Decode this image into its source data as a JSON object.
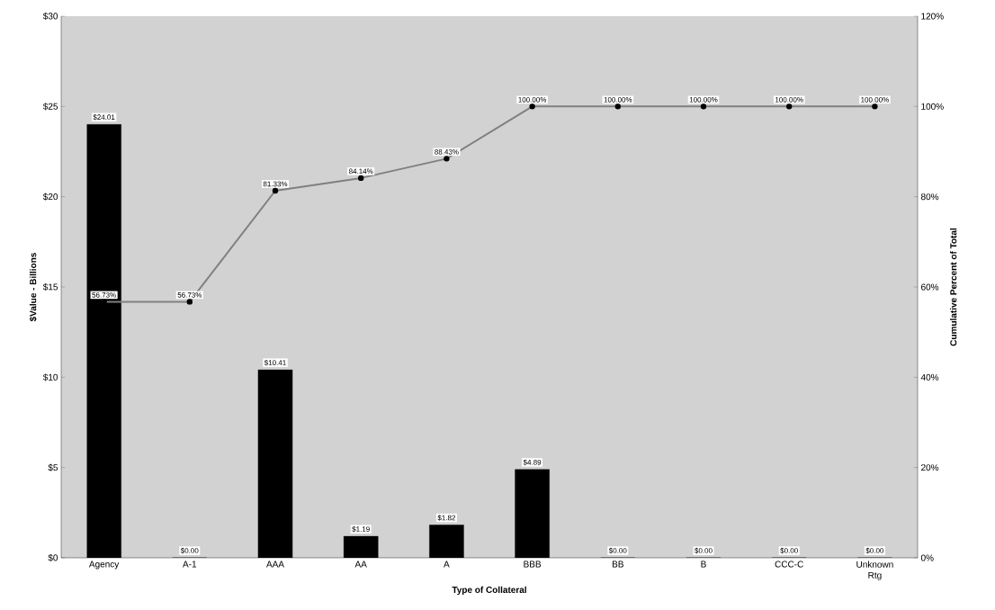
{
  "chart_data": {
    "type": "bar",
    "xlabel": "Type of Collateral",
    "ylabel": "$Value - Billions",
    "y2label": "Cumulative Percent of Total",
    "categories": [
      "Agency",
      "A-1",
      "AAA",
      "AA",
      "A",
      "BBB",
      "BB",
      "B",
      "CCC-C",
      "Unknown Rtg"
    ],
    "series": [
      {
        "color": "#000000",
        "values": [
          24.01,
          0.0,
          10.41,
          1.19,
          1.82,
          4.89,
          0.0,
          0.0,
          0.0,
          0.0
        ],
        "value_labels": [
          "$24.01",
          "$0.00",
          "$10.41",
          "$1.19",
          "$1.82",
          "$4.89",
          "$0.00",
          "$0.00",
          "$0.00",
          "$0.00"
        ]
      },
      {
        "type": "line",
        "axis": "y2",
        "color": "#808080",
        "marker": "circle",
        "values": [
          56.73,
          56.73,
          81.33,
          84.14,
          88.43,
          100.0,
          100.0,
          100.0,
          100.0,
          100.0
        ],
        "value_labels": [
          "56.73%",
          "56.73%",
          "81.33%",
          "84.14%",
          "88.43%",
          "100.00%",
          "100.00%",
          "100.00%",
          "100.00%",
          "100.00%"
        ]
      }
    ],
    "ylim": [
      0,
      30
    ],
    "yticks": [
      {
        "value": 0,
        "label": "$0"
      },
      {
        "value": 5,
        "label": "$5"
      },
      {
        "value": 10,
        "label": "$10"
      },
      {
        "value": 15,
        "label": "$15"
      },
      {
        "value": 20,
        "label": "$20"
      },
      {
        "value": 25,
        "label": "$25"
      },
      {
        "value": 30,
        "label": "$30"
      }
    ],
    "y2lim": [
      0,
      120
    ],
    "y2ticks": [
      {
        "value": 0,
        "label": "0%"
      },
      {
        "value": 20,
        "label": "20%"
      },
      {
        "value": 40,
        "label": "40%"
      },
      {
        "value": 60,
        "label": "60%"
      },
      {
        "value": 80,
        "label": "80%"
      },
      {
        "value": 100,
        "label": "100%"
      },
      {
        "value": 120,
        "label": "120%"
      }
    ],
    "grid": false
  }
}
